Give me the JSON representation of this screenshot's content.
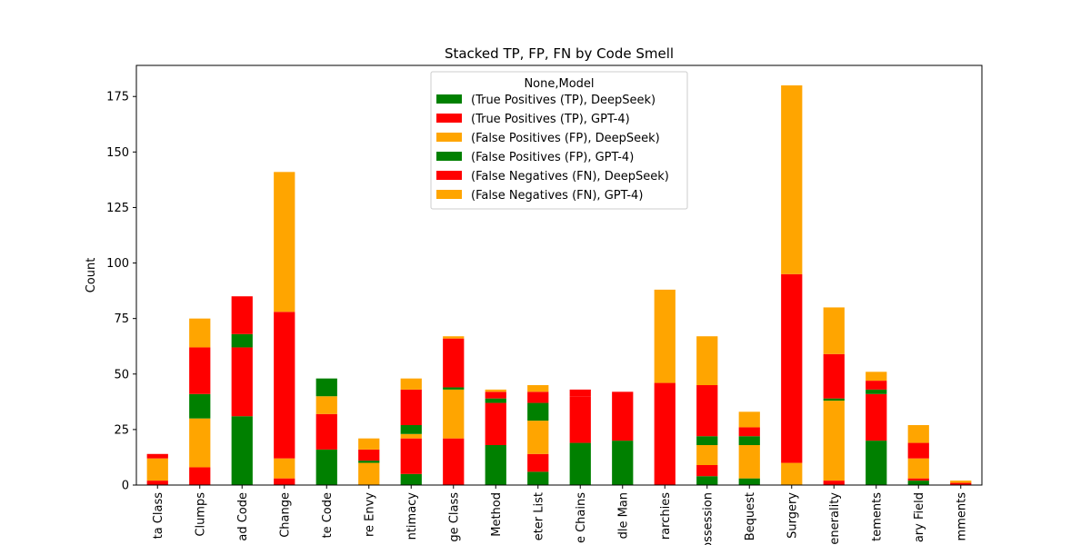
{
  "chart_data": {
    "type": "bar",
    "stacked": true,
    "title": "Stacked TP, FP, FN by Code Smell",
    "xlabel": "",
    "ylabel": "Count",
    "ylim": [
      0,
      189
    ],
    "yticks": [
      0,
      25,
      50,
      75,
      100,
      125,
      150,
      175
    ],
    "grid": false,
    "legend_position": "top-center",
    "legend_title": "None,Model",
    "categories": [
      "ta Class",
      "Clumps",
      "ad Code",
      "Change",
      "te Code",
      "re Envy",
      "ntimacy",
      "ge Class",
      "Method",
      "eter List",
      "e Chains",
      "dle Man",
      "rarchies",
      "ossession",
      "Bequest",
      "Surgery",
      "enerality",
      "tements",
      "ary Field",
      "mments"
    ],
    "series": [
      {
        "name": "(True Positives (TP), DeepSeek)",
        "color": "#008000",
        "values": [
          0,
          0,
          31,
          0,
          16,
          0,
          5,
          0,
          18,
          6,
          19,
          20,
          0,
          4,
          3,
          0,
          0,
          20,
          2,
          0
        ]
      },
      {
        "name": "(True Positives (TP), GPT-4)",
        "color": "#ff0000",
        "values": [
          2,
          8,
          31,
          3,
          16,
          0,
          16,
          21,
          19,
          8,
          21,
          22,
          46,
          5,
          0,
          0,
          2,
          21,
          1,
          1
        ]
      },
      {
        "name": "(False Positives (FP), DeepSeek)",
        "color": "#ffa500",
        "values": [
          10,
          22,
          0,
          9,
          8,
          10,
          2,
          22,
          0,
          15,
          0,
          0,
          0,
          9,
          15,
          10,
          36,
          0,
          9,
          0
        ]
      },
      {
        "name": "(False Positives (FP), GPT-4)",
        "color": "#008000",
        "values": [
          0,
          11,
          6,
          0,
          8,
          1,
          4,
          1,
          2,
          8,
          0,
          0,
          0,
          4,
          4,
          0,
          1,
          2,
          0,
          0
        ]
      },
      {
        "name": "(False Negatives (FN), DeepSeek)",
        "color": "#ff0000",
        "values": [
          2,
          21,
          17,
          66,
          0,
          5,
          16,
          22,
          3,
          5,
          3,
          0,
          0,
          23,
          4,
          85,
          20,
          4,
          7,
          0
        ]
      },
      {
        "name": "(False Negatives (FN), GPT-4)",
        "color": "#ffa500",
        "values": [
          0,
          13,
          0,
          63,
          0,
          5,
          5,
          1,
          1,
          3,
          0,
          0,
          42,
          22,
          7,
          85,
          21,
          4,
          8,
          1
        ]
      }
    ]
  }
}
